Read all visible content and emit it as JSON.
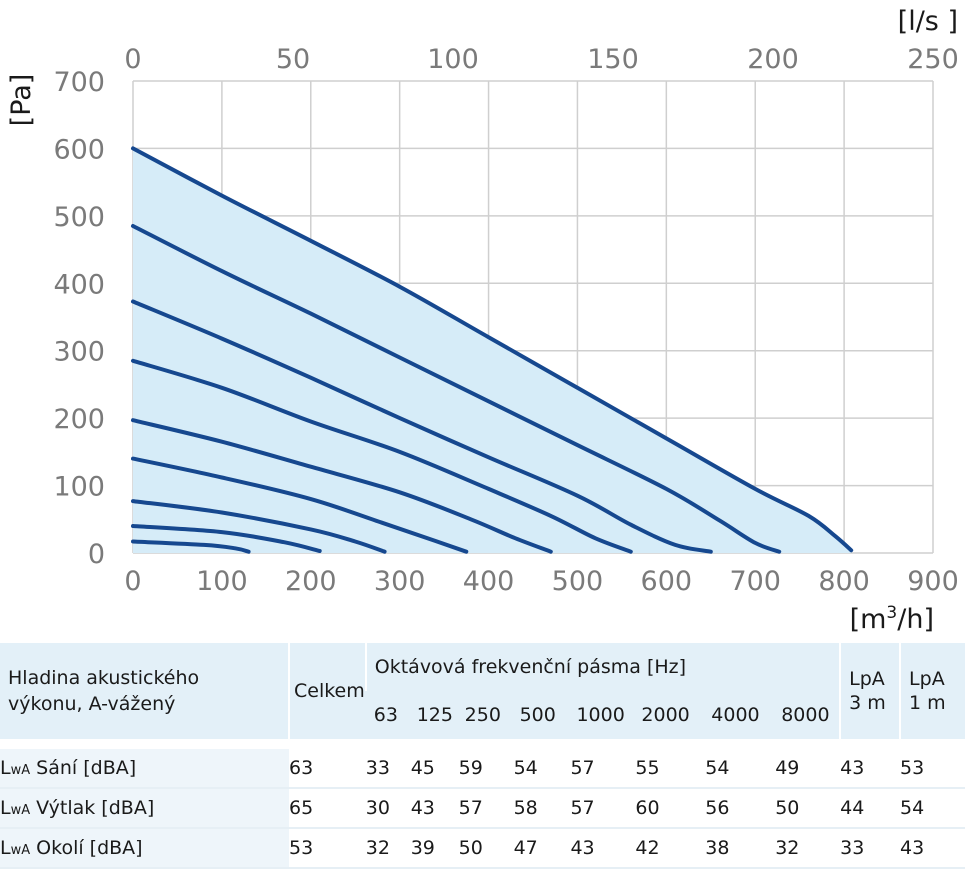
{
  "chart_data": {
    "type": "line",
    "x_axis": {
      "label_main": "[m",
      "label_sup": "3",
      "label_end": "/h]",
      "ticks": [
        0,
        100,
        200,
        300,
        400,
        500,
        600,
        700,
        800,
        900
      ],
      "range": [
        0,
        900
      ]
    },
    "x2_axis": {
      "label": "[l/s ]",
      "ticks": [
        0,
        50,
        100,
        150,
        200,
        250
      ],
      "range": [
        0,
        250
      ]
    },
    "y_axis": {
      "label": "[Pa]",
      "ticks": [
        0,
        100,
        200,
        300,
        400,
        500,
        600,
        700
      ],
      "range": [
        0,
        700
      ]
    },
    "grid": true,
    "shaded_area": true,
    "colors": {
      "curve": "#16488f",
      "area": "#d6ecf8",
      "grid": "#cfcfcf",
      "tick": "#7a7a7a"
    },
    "series": [
      {
        "points": [
          [
            0,
            600
          ],
          [
            100,
            530
          ],
          [
            200,
            463
          ],
          [
            300,
            395
          ],
          [
            400,
            320
          ],
          [
            500,
            245
          ],
          [
            600,
            170
          ],
          [
            700,
            95
          ],
          [
            760,
            55
          ],
          [
            790,
            25
          ],
          [
            808,
            4
          ]
        ]
      },
      {
        "points": [
          [
            0,
            485
          ],
          [
            100,
            418
          ],
          [
            200,
            355
          ],
          [
            300,
            290
          ],
          [
            400,
            225
          ],
          [
            500,
            160
          ],
          [
            600,
            95
          ],
          [
            660,
            48
          ],
          [
            700,
            15
          ],
          [
            727,
            2
          ]
        ]
      },
      {
        "points": [
          [
            0,
            373
          ],
          [
            100,
            318
          ],
          [
            200,
            260
          ],
          [
            300,
            200
          ],
          [
            400,
            142
          ],
          [
            500,
            85
          ],
          [
            560,
            42
          ],
          [
            610,
            12
          ],
          [
            650,
            2
          ]
        ]
      },
      {
        "points": [
          [
            0,
            285
          ],
          [
            100,
            245
          ],
          [
            200,
            195
          ],
          [
            300,
            150
          ],
          [
            400,
            95
          ],
          [
            470,
            55
          ],
          [
            520,
            22
          ],
          [
            560,
            2
          ]
        ]
      },
      {
        "points": [
          [
            0,
            197
          ],
          [
            100,
            165
          ],
          [
            200,
            128
          ],
          [
            300,
            90
          ],
          [
            380,
            50
          ],
          [
            430,
            22
          ],
          [
            470,
            2
          ]
        ]
      },
      {
        "points": [
          [
            0,
            140
          ],
          [
            100,
            112
          ],
          [
            200,
            80
          ],
          [
            280,
            45
          ],
          [
            340,
            18
          ],
          [
            375,
            2
          ]
        ]
      },
      {
        "points": [
          [
            0,
            77
          ],
          [
            100,
            60
          ],
          [
            200,
            35
          ],
          [
            250,
            17
          ],
          [
            283,
            2
          ]
        ]
      },
      {
        "points": [
          [
            0,
            40
          ],
          [
            100,
            31
          ],
          [
            170,
            16
          ],
          [
            210,
            3
          ]
        ]
      },
      {
        "points": [
          [
            0,
            17
          ],
          [
            80,
            12
          ],
          [
            115,
            7
          ],
          [
            130,
            2
          ]
        ]
      }
    ]
  },
  "table": {
    "header_label_line1": "Hladina akustického",
    "header_label_line2": "výkonu, A-vážený",
    "celkem": "Celkem",
    "octave_title": "Oktávová frekvenční pásma [Hz]",
    "freqs": [
      "63",
      "125",
      "250",
      "500",
      "1000",
      "2000",
      "4000",
      "8000"
    ],
    "lpa3_line1": "LpA",
    "lpa3_line2": "3 m",
    "lpa1_line1": "LpA",
    "lpa1_line2": "1 m",
    "rows": [
      {
        "prefix": "L",
        "sub": "wA",
        "label": " Sání [dBA]",
        "values": [
          "63",
          "33",
          "45",
          "59",
          "54",
          "57",
          "55",
          "54",
          "49",
          "43",
          "53"
        ]
      },
      {
        "prefix": "L",
        "sub": "wA",
        "label": " Výtlak [dBA]",
        "values": [
          "65",
          "30",
          "43",
          "57",
          "58",
          "57",
          "60",
          "56",
          "50",
          "44",
          "54"
        ]
      },
      {
        "prefix": "L",
        "sub": "wA",
        "label": " Okolí [dBA]",
        "values": [
          "53",
          "32",
          "39",
          "50",
          "47",
          "43",
          "42",
          "38",
          "32",
          "33",
          "43"
        ]
      }
    ]
  }
}
